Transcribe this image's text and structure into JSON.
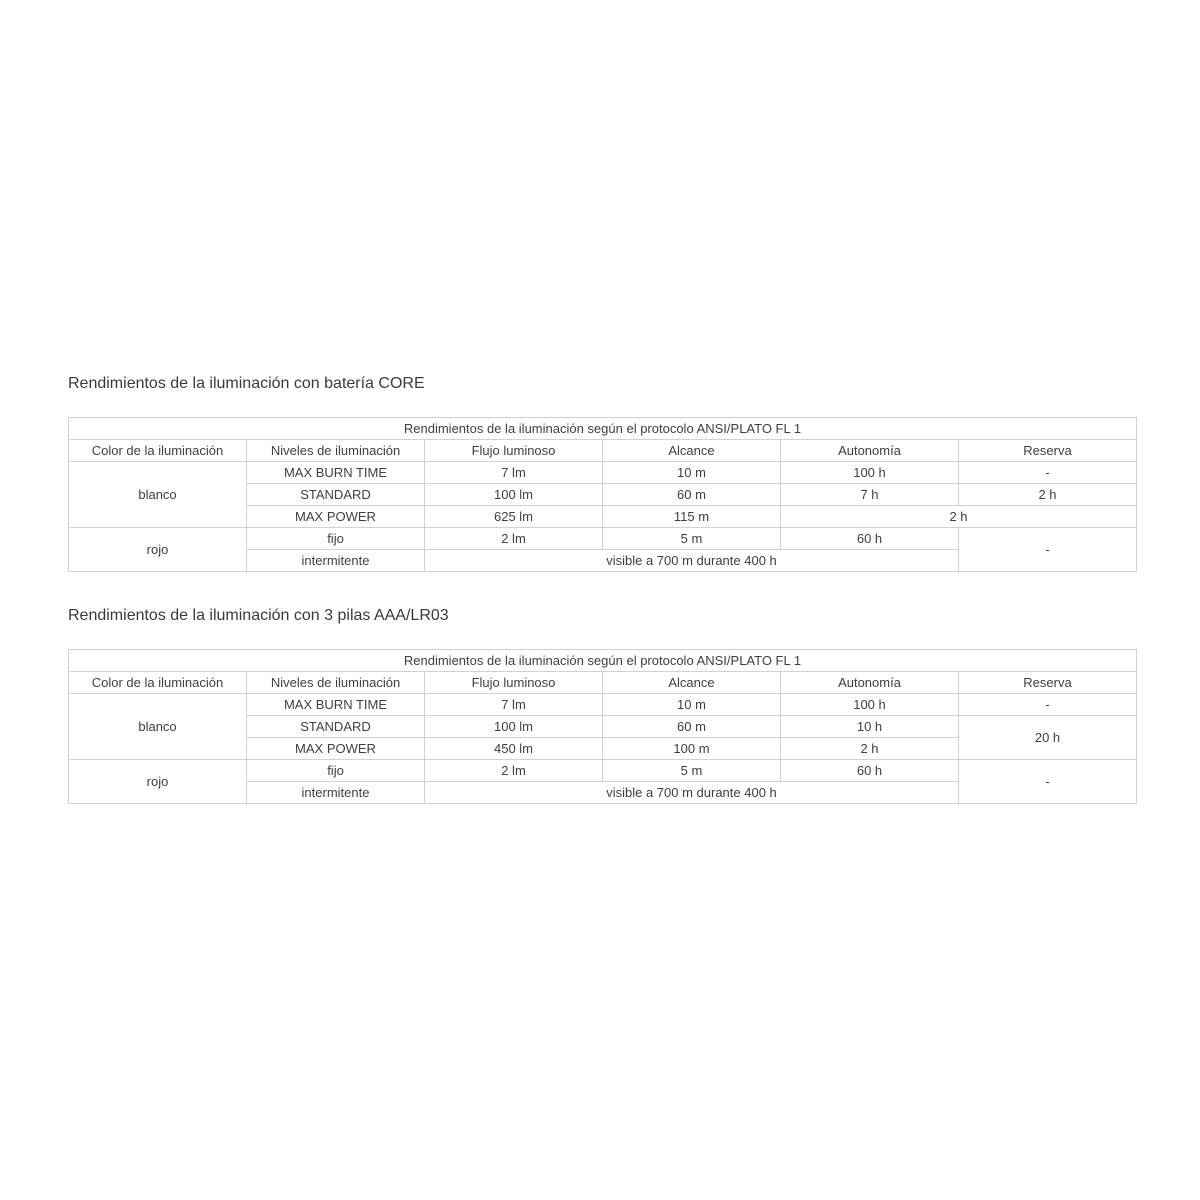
{
  "page": {
    "background": "#ffffff",
    "text_color": "#3f3f3f",
    "border_color": "#d2d2d2"
  },
  "sections": [
    {
      "heading": "Rendimientos de la iluminación con batería CORE",
      "table": {
        "title": "Rendimientos de la iluminación según el protocolo ANSI/PLATO FL 1",
        "columns": [
          "Color de la iluminación",
          "Niveles de iluminación",
          "Flujo luminoso",
          "Alcance",
          "Autonomía",
          "Reserva"
        ],
        "body": [
          [
            {
              "t": "blanco",
              "rs": 3
            },
            {
              "t": "MAX BURN TIME"
            },
            {
              "t": "7 lm"
            },
            {
              "t": "10 m"
            },
            {
              "t": "100 h"
            },
            {
              "t": "-"
            }
          ],
          [
            {
              "t": "STANDARD"
            },
            {
              "t": "100 lm"
            },
            {
              "t": "60 m"
            },
            {
              "t": "7 h"
            },
            {
              "t": "2 h"
            }
          ],
          [
            {
              "t": "MAX POWER"
            },
            {
              "t": "625 lm"
            },
            {
              "t": "115 m"
            },
            {
              "t": "2 h",
              "cs": 2
            }
          ],
          [
            {
              "t": "rojo",
              "rs": 2
            },
            {
              "t": "fijo"
            },
            {
              "t": "2 lm"
            },
            {
              "t": "5 m"
            },
            {
              "t": "60 h"
            },
            {
              "t": "-",
              "rs": 2
            }
          ],
          [
            {
              "t": "intermitente"
            },
            {
              "t": "visible a 700 m durante 400 h",
              "cs": 3
            }
          ]
        ]
      }
    },
    {
      "heading": "Rendimientos de la iluminación con 3 pilas AAA/LR03",
      "table": {
        "title": "Rendimientos de la iluminación según el protocolo ANSI/PLATO FL 1",
        "columns": [
          "Color de la iluminación",
          "Niveles de iluminación",
          "Flujo luminoso",
          "Alcance",
          "Autonomía",
          "Reserva"
        ],
        "body": [
          [
            {
              "t": "blanco",
              "rs": 3
            },
            {
              "t": "MAX BURN TIME"
            },
            {
              "t": "7 lm"
            },
            {
              "t": "10 m"
            },
            {
              "t": "100 h"
            },
            {
              "t": "-"
            }
          ],
          [
            {
              "t": "STANDARD"
            },
            {
              "t": "100 lm"
            },
            {
              "t": "60 m"
            },
            {
              "t": "10 h"
            },
            {
              "t": "20 h",
              "rs": 2
            }
          ],
          [
            {
              "t": "MAX POWER"
            },
            {
              "t": "450 lm"
            },
            {
              "t": "100 m"
            },
            {
              "t": "2 h"
            }
          ],
          [
            {
              "t": "rojo",
              "rs": 2
            },
            {
              "t": "fijo"
            },
            {
              "t": "2 lm"
            },
            {
              "t": "5 m"
            },
            {
              "t": "60 h"
            },
            {
              "t": "-",
              "rs": 2
            }
          ],
          [
            {
              "t": "intermitente"
            },
            {
              "t": "visible a 700 m durante 400 h",
              "cs": 3
            }
          ]
        ]
      }
    }
  ]
}
